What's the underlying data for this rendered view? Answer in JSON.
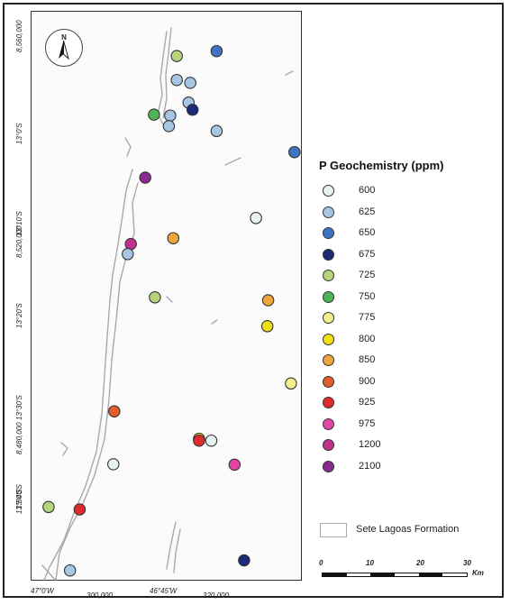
{
  "legend": {
    "title": "P Geochemistry (ppm)",
    "items": [
      {
        "label": "600",
        "color": "#e6f2ec"
      },
      {
        "label": "625",
        "color": "#a7c6e4"
      },
      {
        "label": "650",
        "color": "#3f74c4"
      },
      {
        "label": "675",
        "color": "#1d2a78"
      },
      {
        "label": "725",
        "color": "#b7d47a"
      },
      {
        "label": "750",
        "color": "#4fb454"
      },
      {
        "label": "775",
        "color": "#f3ef8c"
      },
      {
        "label": "800",
        "color": "#f3df12"
      },
      {
        "label": "850",
        "color": "#f0a53a"
      },
      {
        "label": "900",
        "color": "#e35e2a"
      },
      {
        "label": "925",
        "color": "#df2b2b"
      },
      {
        "label": "975",
        "color": "#e444a6"
      },
      {
        "label": "1200",
        "color": "#c2308f"
      },
      {
        "label": "2100",
        "color": "#8a2a90"
      }
    ],
    "formation_label": "Sete Lagoas Formation"
  },
  "north_arrow": {
    "label": "N"
  },
  "scale_bar": {
    "ticks": [
      "0",
      "10",
      "20",
      "30"
    ],
    "unit": "Km"
  },
  "axes": {
    "bottom": [
      "47°0'W",
      "300,000",
      "46°45'W",
      "320,000"
    ],
    "left": [
      "8,560,000",
      "13°0'S",
      "13°10'S",
      "8,520,000",
      "13°20'S",
      "13°30'S",
      "13°40'S",
      "8,480,000",
      "13°50'S"
    ]
  },
  "samples": [
    {
      "value": "725",
      "lon_deg": -46.788,
      "lat_deg": -13.022
    },
    {
      "value": "650",
      "lon_deg": -46.697,
      "lat_deg": -13.012
    },
    {
      "value": "625",
      "lon_deg": -46.788,
      "lat_deg": -13.072
    },
    {
      "value": "625",
      "lon_deg": -46.757,
      "lat_deg": -13.078
    },
    {
      "value": "625",
      "lon_deg": -46.761,
      "lat_deg": -13.119
    },
    {
      "value": "675",
      "lon_deg": -46.752,
      "lat_deg": -13.134
    },
    {
      "value": "750",
      "lon_deg": -46.84,
      "lat_deg": -13.144
    },
    {
      "value": "625",
      "lon_deg": -46.803,
      "lat_deg": -13.146
    },
    {
      "value": "625",
      "lon_deg": -46.806,
      "lat_deg": -13.168
    },
    {
      "value": "625",
      "lon_deg": -46.697,
      "lat_deg": -13.178
    },
    {
      "value": "650",
      "lon_deg": -46.519,
      "lat_deg": -13.222
    },
    {
      "value": "2100",
      "lon_deg": -46.86,
      "lat_deg": -13.275
    },
    {
      "value": "600",
      "lon_deg": -46.607,
      "lat_deg": -13.359
    },
    {
      "value": "850",
      "lon_deg": -46.796,
      "lat_deg": -13.401
    },
    {
      "value": "1200",
      "lon_deg": -46.893,
      "lat_deg": -13.413
    },
    {
      "value": "625",
      "lon_deg": -46.9,
      "lat_deg": -13.434
    },
    {
      "value": "725",
      "lon_deg": -46.838,
      "lat_deg": -13.524
    },
    {
      "value": "850",
      "lon_deg": -46.579,
      "lat_deg": -13.53
    },
    {
      "value": "800",
      "lon_deg": -46.581,
      "lat_deg": -13.584
    },
    {
      "value": "775",
      "lon_deg": -46.527,
      "lat_deg": -13.703
    },
    {
      "value": "900",
      "lon_deg": -46.931,
      "lat_deg": -13.761
    },
    {
      "value": "800",
      "lon_deg": -46.737,
      "lat_deg": -13.818
    },
    {
      "value": "925",
      "lon_deg": -46.737,
      "lat_deg": -13.822
    },
    {
      "value": "600",
      "lon_deg": -46.709,
      "lat_deg": -13.822
    },
    {
      "value": "600",
      "lon_deg": -46.933,
      "lat_deg": -13.871
    },
    {
      "value": "975",
      "lon_deg": -46.656,
      "lat_deg": -13.872
    },
    {
      "value": "725",
      "lon_deg": -47.081,
      "lat_deg": -13.96
    },
    {
      "value": "925",
      "lon_deg": -47.01,
      "lat_deg": -13.965
    },
    {
      "value": "675",
      "lon_deg": -46.634,
      "lat_deg": -14.071
    },
    {
      "value": "625",
      "lon_deg": -47.032,
      "lat_deg": -14.092
    }
  ]
}
